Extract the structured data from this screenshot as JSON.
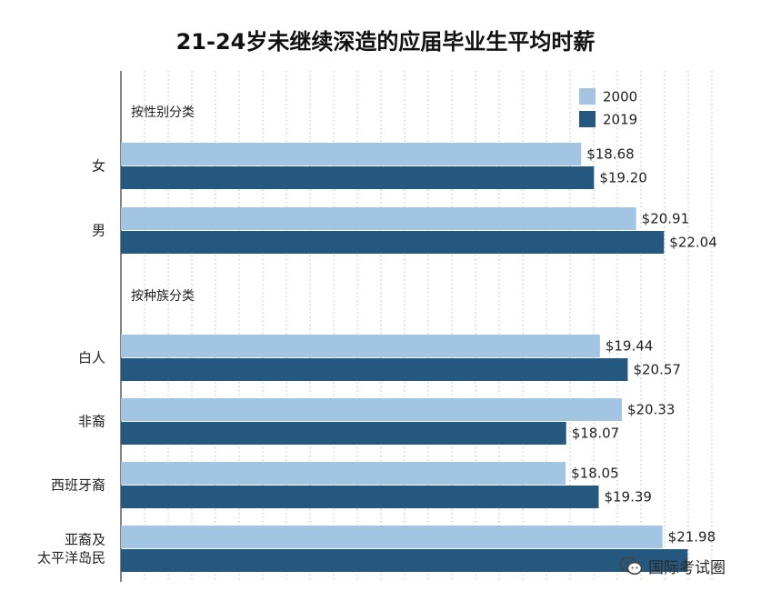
{
  "chart_data": {
    "type": "bar",
    "orientation": "horizontal",
    "title": "21-24岁未继续深造的应届毕业生平均时薪",
    "legend": {
      "position": "top-right",
      "entries": [
        "2000",
        "2019"
      ]
    },
    "colors": {
      "2000": "#a3c5e4",
      "2019": "#25587e"
    },
    "grid": true,
    "xlim": [
      0,
      24.5
    ],
    "value_prefix": "$",
    "groups": [
      {
        "label": "按性别分类",
        "categories": [
          "女",
          "男"
        ]
      },
      {
        "label": "按种族分类",
        "categories": [
          "白人",
          "非裔",
          "西班牙裔",
          "亚裔及\n太平洋岛民"
        ]
      }
    ],
    "categories": [
      "女",
      "男",
      "白人",
      "非裔",
      "西班牙裔",
      "亚裔及\n太平洋岛民"
    ],
    "series": [
      {
        "name": "2000",
        "values": [
          18.68,
          20.91,
          19.44,
          20.33,
          18.05,
          21.98
        ]
      },
      {
        "name": "2019",
        "values": [
          19.2,
          22.04,
          20.57,
          18.07,
          19.39,
          23.0
        ]
      }
    ]
  },
  "watermark": {
    "text": "国际考试圈",
    "icon": "wechat-icon"
  }
}
